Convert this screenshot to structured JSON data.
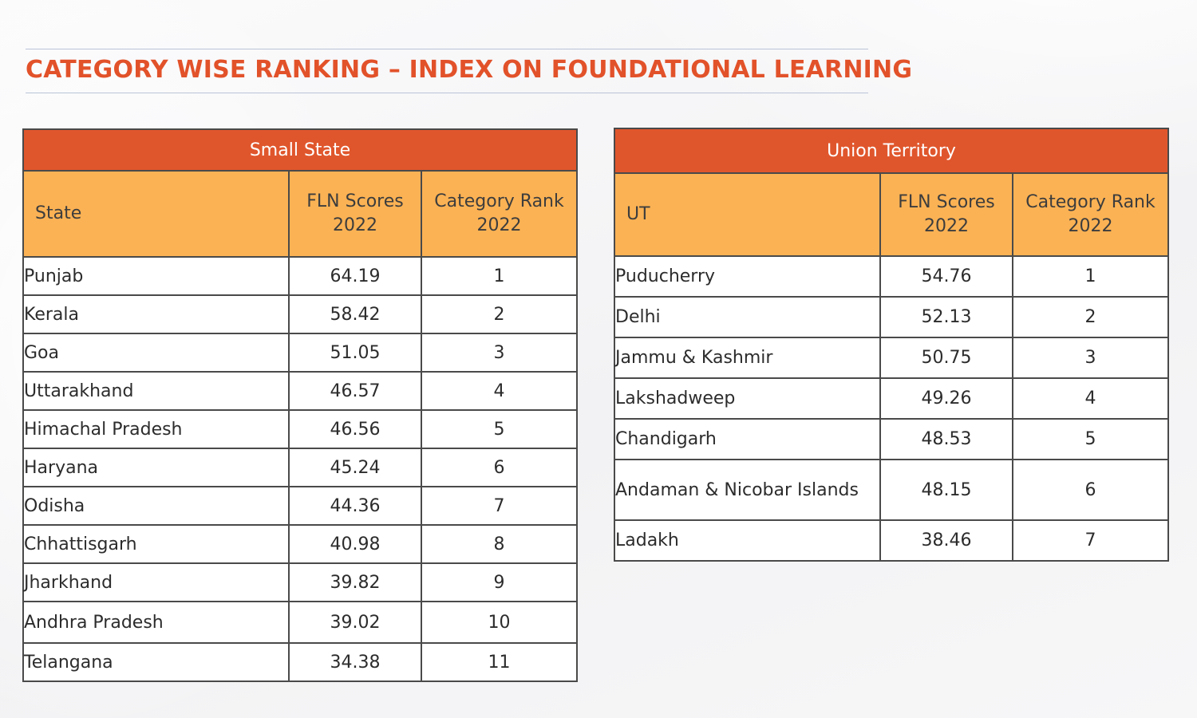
{
  "title": "CATEGORY WISE RANKING – INDEX ON FOUNDATIONAL LEARNING",
  "colors": {
    "header": "#e0562c",
    "subheader": "#fbb254",
    "title": "#e2522a"
  },
  "small_state": {
    "heading": "Small State",
    "columns": [
      "State",
      "FLN Scores 2022",
      "Category Rank 2022"
    ],
    "rows": [
      {
        "name": "Punjab",
        "score": "64.19",
        "rank": "1"
      },
      {
        "name": "Kerala",
        "score": "58.42",
        "rank": "2"
      },
      {
        "name": "Goa",
        "score": "51.05",
        "rank": "3"
      },
      {
        "name": "Uttarakhand",
        "score": "46.57",
        "rank": "4"
      },
      {
        "name": "Himachal Pradesh",
        "score": "46.56",
        "rank": "5"
      },
      {
        "name": "Haryana",
        "score": "45.24",
        "rank": "6"
      },
      {
        "name": "Odisha",
        "score": "44.36",
        "rank": "7"
      },
      {
        "name": "Chhattisgarh",
        "score": "40.98",
        "rank": "8"
      },
      {
        "name": "Jharkhand",
        "score": "39.82",
        "rank": "9"
      },
      {
        "name": "Andhra Pradesh",
        "score": "39.02",
        "rank": "10"
      },
      {
        "name": "Telangana",
        "score": "34.38",
        "rank": "11"
      }
    ]
  },
  "union_territory": {
    "heading": "Union Territory",
    "columns": [
      "UT",
      "FLN Scores 2022",
      "Category Rank 2022"
    ],
    "rows": [
      {
        "name": "Puducherry",
        "score": "54.76",
        "rank": "1"
      },
      {
        "name": "Delhi",
        "score": "52.13",
        "rank": "2"
      },
      {
        "name": "Jammu & Kashmir",
        "score": "50.75",
        "rank": "3"
      },
      {
        "name": "Lakshadweep",
        "score": "49.26",
        "rank": "4"
      },
      {
        "name": "Chandigarh",
        "score": "48.53",
        "rank": "5"
      },
      {
        "name": "Andaman & Nicobar Islands",
        "score": "48.15",
        "rank": "6"
      },
      {
        "name": "Ladakh",
        "score": "38.46",
        "rank": "7"
      }
    ]
  }
}
